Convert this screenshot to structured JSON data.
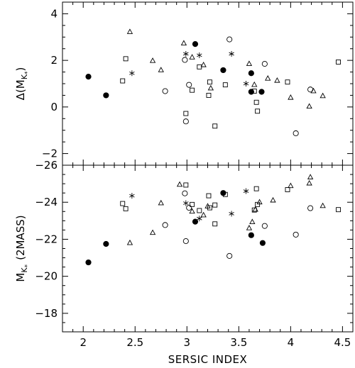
{
  "chart_data": [
    {
      "type": "scatter",
      "panel": "top",
      "ylabel_main": "Δ(M",
      "ylabel_sub": "K",
      "ylabel_subsub": "*",
      "ylabel_close": ")",
      "xlim": [
        1.8,
        4.6
      ],
      "ylim": [
        -2.5,
        4.5
      ],
      "yticks": [
        -2,
        0,
        2,
        4
      ],
      "yticklabels": [
        "−2",
        "0",
        "2",
        "4"
      ],
      "series": [
        {
          "marker": "filled-circle",
          "points": [
            [
              2.05,
              1.3
            ],
            [
              2.22,
              0.5
            ],
            [
              3.08,
              2.7
            ],
            [
              3.35,
              1.58
            ],
            [
              3.62,
              1.45
            ],
            [
              3.62,
              0.65
            ],
            [
              3.72,
              0.65
            ]
          ]
        },
        {
          "marker": "open-circle",
          "points": [
            [
              2.79,
              0.68
            ],
            [
              2.98,
              2.02
            ],
            [
              3.02,
              0.95
            ],
            [
              2.99,
              -0.62
            ],
            [
              3.41,
              2.9
            ],
            [
              3.75,
              1.85
            ],
            [
              4.19,
              0.75
            ],
            [
              4.05,
              -1.13
            ]
          ]
        },
        {
          "marker": "open-square",
          "points": [
            [
              2.38,
              1.12
            ],
            [
              2.41,
              2.07
            ],
            [
              2.99,
              -0.28
            ],
            [
              3.05,
              0.72
            ],
            [
              3.12,
              1.72
            ],
            [
              3.21,
              0.5
            ],
            [
              3.22,
              1.07
            ],
            [
              3.27,
              -0.82
            ],
            [
              3.37,
              0.95
            ],
            [
              3.65,
              0.68
            ],
            [
              3.67,
              0.2
            ],
            [
              3.68,
              -0.18
            ],
            [
              3.97,
              1.07
            ],
            [
              4.46,
              1.93
            ]
          ]
        },
        {
          "marker": "open-triangle",
          "points": [
            [
              2.45,
              3.22
            ],
            [
              2.67,
              1.98
            ],
            [
              2.75,
              1.58
            ],
            [
              2.97,
              2.73
            ],
            [
              3.05,
              2.13
            ],
            [
              3.23,
              0.8
            ],
            [
              3.16,
              1.8
            ],
            [
              3.6,
              1.85
            ],
            [
              3.65,
              0.95
            ],
            [
              3.78,
              1.22
            ],
            [
              3.87,
              1.13
            ],
            [
              4.0,
              0.4
            ],
            [
              4.18,
              0.02
            ],
            [
              4.22,
              0.68
            ],
            [
              4.31,
              0.47
            ]
          ]
        },
        {
          "marker": "asterisk",
          "points": [
            [
              2.47,
              1.45
            ],
            [
              2.99,
              2.28
            ],
            [
              3.12,
              2.22
            ],
            [
              3.43,
              2.28
            ],
            [
              3.57,
              1.0
            ]
          ]
        }
      ]
    },
    {
      "type": "scatter",
      "panel": "bottom",
      "xlabel": "SERSIC INDEX",
      "ylabel_main": "M",
      "ylabel_sub": "K",
      "ylabel_subsub": "*",
      "ylabel_tail": "(2MASS)",
      "xlim": [
        1.8,
        4.6
      ],
      "ylim": [
        -17,
        -26
      ],
      "xticks": [
        2,
        2.5,
        3,
        3.5,
        4,
        4.5
      ],
      "xticklabels": [
        "2",
        "2.5",
        "3",
        "3.5",
        "4",
        "4.5"
      ],
      "yticks": [
        -18,
        -20,
        -22,
        -24,
        -26
      ],
      "yticklabels": [
        "−18",
        "−20",
        "−22",
        "−24",
        "−26"
      ],
      "series": [
        {
          "marker": "filled-circle",
          "points": [
            [
              2.05,
              -20.75
            ],
            [
              2.22,
              -21.75
            ],
            [
              3.08,
              -22.95
            ],
            [
              3.35,
              -24.5
            ],
            [
              3.62,
              -22.22
            ],
            [
              3.73,
              -21.8
            ]
          ]
        },
        {
          "marker": "open-circle",
          "points": [
            [
              2.79,
              -22.77
            ],
            [
              2.98,
              -24.48
            ],
            [
              3.02,
              -23.7
            ],
            [
              2.99,
              -21.9
            ],
            [
              3.41,
              -21.1
            ],
            [
              3.75,
              -22.72
            ],
            [
              4.19,
              -23.68
            ],
            [
              4.05,
              -22.25
            ]
          ]
        },
        {
          "marker": "open-square",
          "points": [
            [
              2.38,
              -23.93
            ],
            [
              2.41,
              -23.65
            ],
            [
              2.99,
              -24.93
            ],
            [
              3.05,
              -23.88
            ],
            [
              3.12,
              -23.55
            ],
            [
              3.21,
              -24.35
            ],
            [
              3.22,
              -23.7
            ],
            [
              3.27,
              -23.85
            ],
            [
              3.27,
              -22.83
            ],
            [
              3.37,
              -24.42
            ],
            [
              3.65,
              -23.58
            ],
            [
              3.67,
              -24.73
            ],
            [
              3.68,
              -23.88
            ],
            [
              3.97,
              -24.68
            ],
            [
              4.46,
              -23.6
            ]
          ]
        },
        {
          "marker": "open-triangle",
          "points": [
            [
              2.45,
              -21.8
            ],
            [
              2.67,
              -22.35
            ],
            [
              2.75,
              -23.95
            ],
            [
              2.93,
              -24.95
            ],
            [
              3.05,
              -23.5
            ],
            [
              3.16,
              -23.3
            ],
            [
              3.2,
              -23.78
            ],
            [
              3.6,
              -22.6
            ],
            [
              3.63,
              -22.93
            ],
            [
              3.66,
              -23.6
            ],
            [
              3.7,
              -24.0
            ],
            [
              3.83,
              -24.1
            ],
            [
              4.0,
              -24.88
            ],
            [
              4.18,
              -25.02
            ],
            [
              4.19,
              -25.35
            ],
            [
              4.31,
              -23.8
            ]
          ]
        },
        {
          "marker": "asterisk",
          "points": [
            [
              2.47,
              -24.35
            ],
            [
              2.99,
              -23.95
            ],
            [
              3.12,
              -23.12
            ],
            [
              3.43,
              -23.38
            ],
            [
              3.57,
              -24.6
            ]
          ]
        }
      ]
    }
  ]
}
